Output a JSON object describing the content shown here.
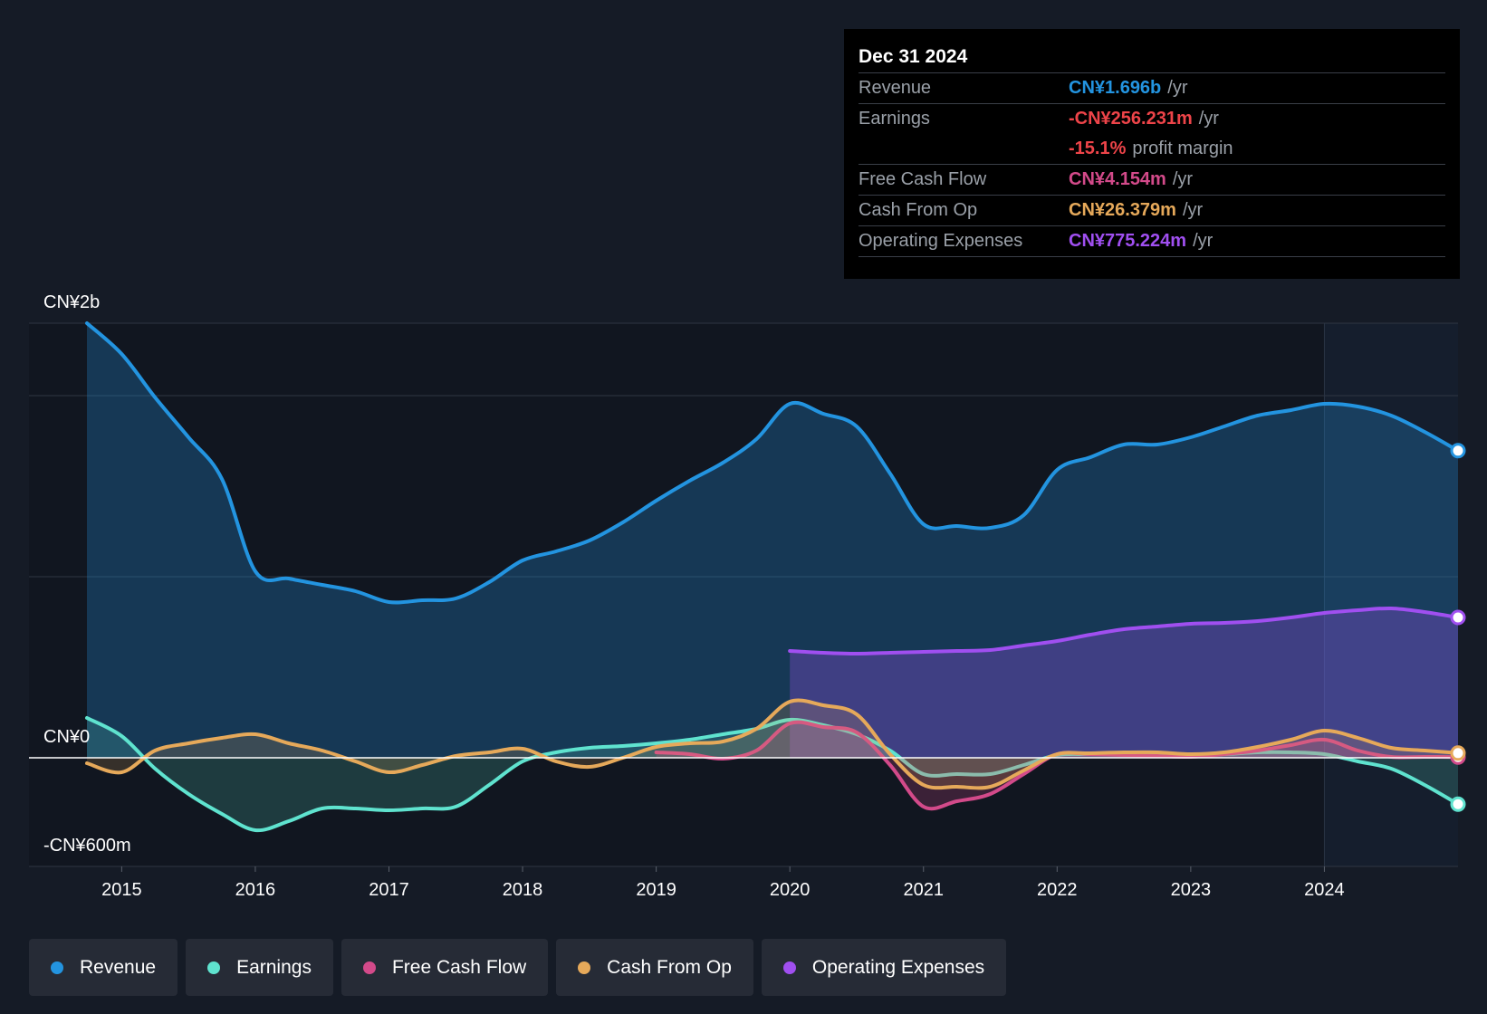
{
  "tooltip": {
    "date": "Dec 31 2024",
    "rows": [
      {
        "label": "Revenue",
        "value": "CN¥1.696b",
        "suffix": "/yr",
        "color": "#2394e0"
      },
      {
        "label": "Earnings",
        "value": "-CN¥256.231m",
        "suffix": "/yr",
        "color": "#ee4449"
      },
      {
        "label": "",
        "value": "-15.1%",
        "suffix": "profit margin",
        "color": "#ee4449"
      },
      {
        "label": "Free Cash Flow",
        "value": "CN¥4.154m",
        "suffix": "/yr",
        "color": "#d34a8a"
      },
      {
        "label": "Cash From Op",
        "value": "CN¥26.379m",
        "suffix": "/yr",
        "color": "#e6a95a"
      },
      {
        "label": "Operating Expenses",
        "value": "CN¥775.224m",
        "suffix": "/yr",
        "color": "#a04ff0"
      }
    ]
  },
  "legend": [
    {
      "label": "Revenue",
      "color": "#2394e0"
    },
    {
      "label": "Earnings",
      "color": "#5fe3cf"
    },
    {
      "label": "Free Cash Flow",
      "color": "#d34a8a"
    },
    {
      "label": "Cash From Op",
      "color": "#e6a95a"
    },
    {
      "label": "Operating Expenses",
      "color": "#a04ff0"
    }
  ],
  "chart_data": {
    "type": "area",
    "title": "",
    "y_tick_labels": [
      "CN¥2b",
      "CN¥0",
      "-CN¥600m"
    ],
    "ylim": [
      -600,
      2400
    ],
    "xlim": [
      2014.74,
      2025.0
    ],
    "x_ticks": [
      2015,
      2016,
      2017,
      2018,
      2019,
      2020,
      2021,
      2022,
      2023,
      2024
    ],
    "x_tick_labels": [
      "2015",
      "2016",
      "2017",
      "2018",
      "2019",
      "2020",
      "2021",
      "2022",
      "2023",
      "2024"
    ],
    "highlight_from": 2024.0,
    "series": [
      {
        "name": "Revenue",
        "color": "#2394e0",
        "points": [
          [
            2014.74,
            2400
          ],
          [
            2015.0,
            2230
          ],
          [
            2015.25,
            1990
          ],
          [
            2015.5,
            1770
          ],
          [
            2015.75,
            1540
          ],
          [
            2016.0,
            1030
          ],
          [
            2016.25,
            990
          ],
          [
            2016.5,
            955
          ],
          [
            2016.75,
            920
          ],
          [
            2017.0,
            860
          ],
          [
            2017.25,
            870
          ],
          [
            2017.5,
            880
          ],
          [
            2017.75,
            970
          ],
          [
            2018.0,
            1090
          ],
          [
            2018.25,
            1140
          ],
          [
            2018.5,
            1200
          ],
          [
            2018.75,
            1300
          ],
          [
            2019.0,
            1420
          ],
          [
            2019.25,
            1530
          ],
          [
            2019.5,
            1630
          ],
          [
            2019.75,
            1760
          ],
          [
            2020.0,
            1955
          ],
          [
            2020.25,
            1900
          ],
          [
            2020.5,
            1830
          ],
          [
            2020.75,
            1570
          ],
          [
            2021.0,
            1290
          ],
          [
            2021.25,
            1280
          ],
          [
            2021.5,
            1270
          ],
          [
            2021.75,
            1340
          ],
          [
            2022.0,
            1590
          ],
          [
            2022.25,
            1660
          ],
          [
            2022.5,
            1730
          ],
          [
            2022.75,
            1730
          ],
          [
            2023.0,
            1770
          ],
          [
            2023.25,
            1830
          ],
          [
            2023.5,
            1890
          ],
          [
            2023.75,
            1920
          ],
          [
            2024.0,
            1955
          ],
          [
            2024.25,
            1940
          ],
          [
            2024.5,
            1890
          ],
          [
            2024.75,
            1800
          ],
          [
            2025.0,
            1696
          ]
        ]
      },
      {
        "name": "Earnings",
        "color": "#5fe3cf",
        "points": [
          [
            2014.74,
            220
          ],
          [
            2015.0,
            120
          ],
          [
            2015.25,
            -60
          ],
          [
            2015.5,
            -200
          ],
          [
            2015.75,
            -310
          ],
          [
            2016.0,
            -400
          ],
          [
            2016.25,
            -350
          ],
          [
            2016.5,
            -280
          ],
          [
            2016.75,
            -280
          ],
          [
            2017.0,
            -290
          ],
          [
            2017.25,
            -280
          ],
          [
            2017.5,
            -270
          ],
          [
            2017.75,
            -150
          ],
          [
            2018.0,
            -20
          ],
          [
            2018.25,
            30
          ],
          [
            2018.5,
            55
          ],
          [
            2018.75,
            65
          ],
          [
            2019.0,
            80
          ],
          [
            2019.25,
            100
          ],
          [
            2019.5,
            130
          ],
          [
            2019.75,
            160
          ],
          [
            2020.0,
            210
          ],
          [
            2020.25,
            180
          ],
          [
            2020.5,
            130
          ],
          [
            2020.75,
            40
          ],
          [
            2021.0,
            -90
          ],
          [
            2021.25,
            -90
          ],
          [
            2021.5,
            -90
          ],
          [
            2021.75,
            -40
          ],
          [
            2022.0,
            15
          ],
          [
            2022.25,
            20
          ],
          [
            2022.5,
            25
          ],
          [
            2022.75,
            20
          ],
          [
            2023.0,
            15
          ],
          [
            2023.25,
            20
          ],
          [
            2023.5,
            30
          ],
          [
            2023.75,
            30
          ],
          [
            2024.0,
            20
          ],
          [
            2024.25,
            -20
          ],
          [
            2024.5,
            -60
          ],
          [
            2024.75,
            -150
          ],
          [
            2025.0,
            -256
          ]
        ]
      },
      {
        "name": "Free Cash Flow",
        "color": "#d34a8a",
        "points": [
          [
            2019.0,
            30
          ],
          [
            2019.25,
            20
          ],
          [
            2019.5,
            -5
          ],
          [
            2019.75,
            40
          ],
          [
            2020.0,
            190
          ],
          [
            2020.25,
            170
          ],
          [
            2020.5,
            140
          ],
          [
            2020.75,
            -40
          ],
          [
            2021.0,
            -270
          ],
          [
            2021.25,
            -240
          ],
          [
            2021.5,
            -200
          ],
          [
            2021.75,
            -90
          ],
          [
            2022.0,
            20
          ],
          [
            2022.25,
            20
          ],
          [
            2022.5,
            15
          ],
          [
            2022.75,
            10
          ],
          [
            2023.0,
            5
          ],
          [
            2023.25,
            20
          ],
          [
            2023.5,
            40
          ],
          [
            2023.75,
            70
          ],
          [
            2024.0,
            100
          ],
          [
            2024.25,
            40
          ],
          [
            2024.5,
            5
          ],
          [
            2024.75,
            5
          ],
          [
            2025.0,
            4
          ]
        ]
      },
      {
        "name": "Cash From Op",
        "color": "#e6a95a",
        "points": [
          [
            2014.74,
            -30
          ],
          [
            2015.0,
            -80
          ],
          [
            2015.25,
            40
          ],
          [
            2015.5,
            80
          ],
          [
            2015.75,
            110
          ],
          [
            2016.0,
            130
          ],
          [
            2016.25,
            80
          ],
          [
            2016.5,
            40
          ],
          [
            2016.75,
            -20
          ],
          [
            2017.0,
            -80
          ],
          [
            2017.25,
            -40
          ],
          [
            2017.5,
            10
          ],
          [
            2017.75,
            30
          ],
          [
            2018.0,
            50
          ],
          [
            2018.25,
            -20
          ],
          [
            2018.5,
            -50
          ],
          [
            2018.75,
            0
          ],
          [
            2019.0,
            60
          ],
          [
            2019.25,
            80
          ],
          [
            2019.5,
            90
          ],
          [
            2019.75,
            160
          ],
          [
            2020.0,
            310
          ],
          [
            2020.25,
            290
          ],
          [
            2020.5,
            240
          ],
          [
            2020.75,
            20
          ],
          [
            2021.0,
            -150
          ],
          [
            2021.25,
            -160
          ],
          [
            2021.5,
            -160
          ],
          [
            2021.75,
            -70
          ],
          [
            2022.0,
            20
          ],
          [
            2022.25,
            25
          ],
          [
            2022.5,
            30
          ],
          [
            2022.75,
            30
          ],
          [
            2023.0,
            20
          ],
          [
            2023.25,
            30
          ],
          [
            2023.5,
            60
          ],
          [
            2023.75,
            100
          ],
          [
            2024.0,
            150
          ],
          [
            2024.25,
            110
          ],
          [
            2024.5,
            55
          ],
          [
            2024.75,
            40
          ],
          [
            2025.0,
            26
          ]
        ]
      },
      {
        "name": "Operating Expenses",
        "color": "#a04ff0",
        "points": [
          [
            2020.0,
            590
          ],
          [
            2020.25,
            580
          ],
          [
            2020.5,
            575
          ],
          [
            2020.75,
            580
          ],
          [
            2021.0,
            585
          ],
          [
            2021.25,
            590
          ],
          [
            2021.5,
            595
          ],
          [
            2021.75,
            620
          ],
          [
            2022.0,
            645
          ],
          [
            2022.25,
            680
          ],
          [
            2022.5,
            710
          ],
          [
            2022.75,
            725
          ],
          [
            2023.0,
            740
          ],
          [
            2023.25,
            745
          ],
          [
            2023.5,
            755
          ],
          [
            2023.75,
            775
          ],
          [
            2024.0,
            800
          ],
          [
            2024.25,
            815
          ],
          [
            2024.5,
            825
          ],
          [
            2024.75,
            805
          ],
          [
            2025.0,
            775
          ]
        ]
      }
    ]
  }
}
